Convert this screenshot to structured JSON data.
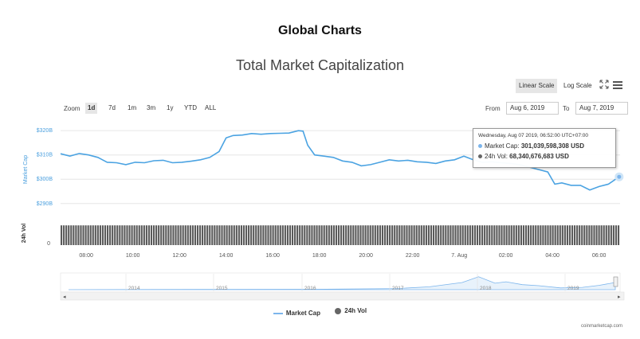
{
  "page_title": "Global Charts",
  "chart_title": "Total Market Capitalization",
  "toolbar": {
    "linear_scale_label": "Linear Scale",
    "log_scale_label": "Log Scale",
    "icons": [
      "expand-icon",
      "menu-icon"
    ]
  },
  "range_selector": {
    "zoom_label": "Zoom",
    "buttons": [
      "1d",
      "7d",
      "1m",
      "3m",
      "1y",
      "YTD",
      "ALL"
    ],
    "selected": "1d",
    "from_label": "From",
    "from_value": "Aug 6, 2019",
    "to_label": "To",
    "to_value": "Aug 7, 2019"
  },
  "tooltip": {
    "header": "Wednesday, Aug 07 2019, 06:52:00 UTC+07:00",
    "market_cap_label": "Market Cap:",
    "market_cap_value": "301,039,598,308 USD",
    "vol_label": "24h Vol:",
    "vol_value": "68,340,676,683 USD"
  },
  "legend": {
    "market_cap": "Market Cap",
    "vol": "24h Vol"
  },
  "footer_credit": "coinmarketcap.com",
  "colors": {
    "market_cap": "#7cb5ec",
    "volume": "#666666",
    "navigator_fill": "#e8f2fb"
  },
  "chart_data": {
    "type": "line",
    "title": "Total Market Capitalization",
    "ylabel_price": "Market Cap",
    "ylabel_volume": "24h Vol",
    "y_ticks": [
      "$290B",
      "$300B",
      "$310B",
      "$320B"
    ],
    "y_tick_values": [
      290,
      300,
      310,
      320
    ],
    "ylim": [
      286,
      323
    ],
    "y_unit": "billion USD",
    "volume_tick": "0",
    "x_ticks": [
      "08:00",
      "10:00",
      "12:00",
      "14:00",
      "16:00",
      "18:00",
      "20:00",
      "22:00",
      "7. Aug",
      "02:00",
      "04:00",
      "06:00"
    ],
    "x_tick_hours": [
      8,
      10,
      12,
      14,
      16,
      18,
      20,
      22,
      24,
      26,
      28,
      30
    ],
    "xlim_hours": [
      6.9,
      30.9
    ],
    "series": [
      {
        "name": "Market Cap",
        "x_hours": [
          6.9,
          7.3,
          7.7,
          8.1,
          8.5,
          8.9,
          9.3,
          9.7,
          10.1,
          10.5,
          10.9,
          11.3,
          11.7,
          12.1,
          12.5,
          12.9,
          13.3,
          13.7,
          14.0,
          14.3,
          14.7,
          15.1,
          15.5,
          15.9,
          16.3,
          16.7,
          17.1,
          17.3,
          17.5,
          17.8,
          18.2,
          18.6,
          19.0,
          19.4,
          19.8,
          20.2,
          20.6,
          21.0,
          21.4,
          21.8,
          22.2,
          22.6,
          23.0,
          23.4,
          23.8,
          24.2,
          24.6,
          25.0,
          25.4,
          25.8,
          26.2,
          26.6,
          27.0,
          27.4,
          27.8,
          28.1,
          28.4,
          28.8,
          29.2,
          29.6,
          30.0,
          30.4,
          30.86
        ],
        "values": [
          310.5,
          309.5,
          310.6,
          310.0,
          309.0,
          307.0,
          306.8,
          306.0,
          307.0,
          306.8,
          307.6,
          307.8,
          306.8,
          307.0,
          307.4,
          308.0,
          309.0,
          311.4,
          317.0,
          318.0,
          318.2,
          318.8,
          318.5,
          318.8,
          318.9,
          319.0,
          320.0,
          319.8,
          314.0,
          310.0,
          309.5,
          309.0,
          307.5,
          307.0,
          305.5,
          306.0,
          307.0,
          308.0,
          307.5,
          307.8,
          307.2,
          307.0,
          306.5,
          307.5,
          308.0,
          309.5,
          308.0,
          307.0,
          307.2,
          306.8,
          306.5,
          306.0,
          305.0,
          304.0,
          303.0,
          298.0,
          298.5,
          297.5,
          297.5,
          295.6,
          297.0,
          298.0,
          301.0
        ]
      },
      {
        "name": "24h Vol",
        "type": "column",
        "values_relative": 0.92
      }
    ],
    "navigator": {
      "x_ticks": [
        "2014",
        "2015",
        "2016",
        "2017",
        "2018",
        "2019"
      ]
    }
  }
}
